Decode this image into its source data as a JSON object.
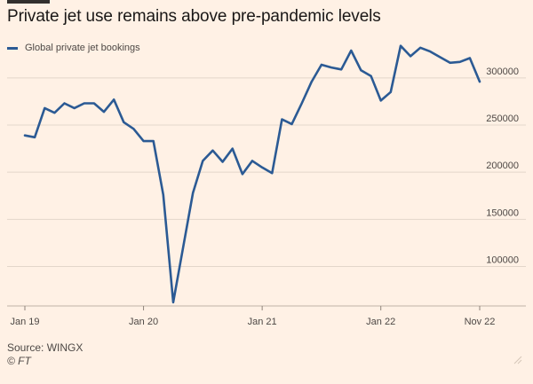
{
  "title": "Private jet use remains above pre-pandemic levels",
  "legend_label": "Global private jet bookings",
  "source": "Source: WINGX",
  "credit": "© FT",
  "colors": {
    "background": "#fff1e5",
    "line": "#2b5a94",
    "grid": "#e3d6ca",
    "text": "#4d4845"
  },
  "chart_data": {
    "type": "line",
    "title": "Private jet use remains above pre-pandemic levels",
    "xlabel": "",
    "ylabel": "",
    "grid": true,
    "legend_position": "top-left",
    "ylim": [
      60000,
      345000
    ],
    "yticks": [
      100000,
      150000,
      200000,
      250000,
      300000
    ],
    "ytick_labels": [
      "100000",
      "150000",
      "200000",
      "250000",
      "300000"
    ],
    "xticks": [
      "2019-01",
      "2020-01",
      "2021-01",
      "2022-01",
      "2022-11"
    ],
    "xtick_labels": [
      "Jan 19",
      "Jan 20",
      "Jan 21",
      "Jan 22",
      "Nov 22"
    ],
    "series": [
      {
        "name": "Global private jet bookings",
        "color": "#2b5a94",
        "x": [
          "2019-01",
          "2019-02",
          "2019-03",
          "2019-04",
          "2019-05",
          "2019-06",
          "2019-07",
          "2019-08",
          "2019-09",
          "2019-10",
          "2019-11",
          "2019-12",
          "2020-01",
          "2020-02",
          "2020-03",
          "2020-04",
          "2020-05",
          "2020-06",
          "2020-07",
          "2020-08",
          "2020-09",
          "2020-10",
          "2020-11",
          "2020-12",
          "2021-01",
          "2021-02",
          "2021-03",
          "2021-04",
          "2021-05",
          "2021-06",
          "2021-07",
          "2021-08",
          "2021-09",
          "2021-10",
          "2021-11",
          "2021-12",
          "2022-01",
          "2022-02",
          "2022-03",
          "2022-04",
          "2022-05",
          "2022-06",
          "2022-07",
          "2022-08",
          "2022-09",
          "2022-10",
          "2022-11"
        ],
        "values": [
          239000,
          237000,
          268000,
          263000,
          273000,
          268000,
          273000,
          273000,
          264000,
          277000,
          253000,
          246000,
          233000,
          233000,
          176000,
          62000,
          120000,
          178000,
          212000,
          223000,
          211000,
          225000,
          198000,
          212000,
          205000,
          199000,
          256000,
          251000,
          273000,
          296000,
          314000,
          311000,
          309000,
          329000,
          308000,
          302000,
          276000,
          285000,
          334000,
          323000,
          332000,
          328000,
          322000,
          316000,
          317000,
          321000,
          296000
        ]
      }
    ]
  }
}
